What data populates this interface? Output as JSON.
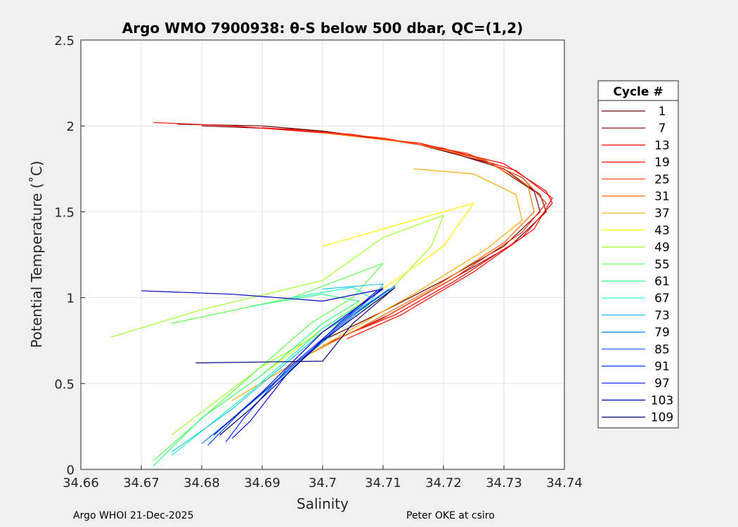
{
  "chart_data": {
    "type": "line",
    "title": "Argo WMO 7900938: θ-S below 500 dbar,  QC=(1,2)",
    "xlabel": "Salinity",
    "ylabel": "Potential Temperature (˚C)",
    "xlim": [
      34.66,
      34.74
    ],
    "ylim": [
      0,
      2.5
    ],
    "xticks": [
      "34.66",
      "34.67",
      "34.68",
      "34.69",
      "34.7",
      "34.71",
      "34.72",
      "34.73",
      "34.74"
    ],
    "xtick_values": [
      34.66,
      34.67,
      34.68,
      34.69,
      34.7,
      34.71,
      34.72,
      34.73,
      34.74
    ],
    "yticks": [
      "0",
      "0.5",
      "1",
      "1.5",
      "2",
      "2.5"
    ],
    "ytick_values": [
      0,
      0.5,
      1,
      1.5,
      2,
      2.5
    ],
    "grid": true,
    "legend": {
      "title": "Cycle #",
      "placement": "right-outside"
    },
    "series": [
      {
        "name": "1",
        "color": "#6b0000",
        "points": [
          [
            34.676,
            2.01
          ],
          [
            34.69,
            2.0
          ],
          [
            34.7,
            1.97
          ],
          [
            34.715,
            1.9
          ],
          [
            34.728,
            1.78
          ],
          [
            34.735,
            1.62
          ],
          [
            34.736,
            1.5
          ],
          [
            34.73,
            1.3
          ],
          [
            34.72,
            1.1
          ],
          [
            34.71,
            0.92
          ],
          [
            34.7,
            0.75
          ]
        ]
      },
      {
        "name": "7",
        "color": "#7a0000",
        "points": [
          [
            34.68,
            2.0
          ],
          [
            34.695,
            1.98
          ],
          [
            34.705,
            1.95
          ],
          [
            34.718,
            1.88
          ],
          [
            34.73,
            1.75
          ],
          [
            34.736,
            1.6
          ],
          [
            34.737,
            1.5
          ],
          [
            34.731,
            1.3
          ],
          [
            34.721,
            1.1
          ],
          [
            34.711,
            0.9
          ],
          [
            34.7,
            0.72
          ]
        ]
      },
      {
        "name": "13",
        "color": "#ff0000",
        "points": [
          [
            34.672,
            2.02
          ],
          [
            34.685,
            2.0
          ],
          [
            34.7,
            1.96
          ],
          [
            34.716,
            1.9
          ],
          [
            34.73,
            1.78
          ],
          [
            34.737,
            1.62
          ],
          [
            34.738,
            1.55
          ],
          [
            34.733,
            1.35
          ],
          [
            34.722,
            1.1
          ],
          [
            34.712,
            0.9
          ],
          [
            34.705,
            0.8
          ]
        ]
      },
      {
        "name": "19",
        "color": "#ff1000",
        "points": [
          [
            34.69,
            1.99
          ],
          [
            34.705,
            1.95
          ],
          [
            34.72,
            1.87
          ],
          [
            34.732,
            1.74
          ],
          [
            34.738,
            1.58
          ],
          [
            34.735,
            1.4
          ],
          [
            34.725,
            1.15
          ],
          [
            34.713,
            0.9
          ],
          [
            34.704,
            0.76
          ]
        ]
      },
      {
        "name": "25",
        "color": "#ff3000",
        "points": [
          [
            34.695,
            1.98
          ],
          [
            34.71,
            1.93
          ],
          [
            34.724,
            1.84
          ],
          [
            34.733,
            1.7
          ],
          [
            34.737,
            1.55
          ],
          [
            34.733,
            1.38
          ],
          [
            34.722,
            1.12
          ],
          [
            34.71,
            0.88
          ],
          [
            34.7,
            0.72
          ]
        ]
      },
      {
        "name": "31",
        "color": "#ff6a00",
        "points": [
          [
            34.7,
            1.96
          ],
          [
            34.715,
            1.9
          ],
          [
            34.727,
            1.8
          ],
          [
            34.734,
            1.65
          ],
          [
            34.735,
            1.5
          ],
          [
            34.73,
            1.32
          ],
          [
            34.718,
            1.05
          ],
          [
            34.706,
            0.82
          ],
          [
            34.695,
            0.62
          ]
        ]
      },
      {
        "name": "37",
        "color": "#ffaa00",
        "points": [
          [
            34.715,
            1.75
          ],
          [
            34.725,
            1.72
          ],
          [
            34.732,
            1.6
          ],
          [
            34.733,
            1.45
          ],
          [
            34.727,
            1.28
          ],
          [
            34.715,
            1.02
          ],
          [
            34.703,
            0.78
          ],
          [
            34.692,
            0.55
          ],
          [
            34.685,
            0.4
          ]
        ]
      },
      {
        "name": "43",
        "color": "#ffff00",
        "points": [
          [
            34.7,
            1.3
          ],
          [
            34.715,
            1.45
          ],
          [
            34.725,
            1.55
          ],
          [
            34.72,
            1.3
          ],
          [
            34.712,
            1.1
          ],
          [
            34.7,
            0.82
          ],
          [
            34.69,
            0.55
          ],
          [
            34.68,
            0.3
          ]
        ]
      },
      {
        "name": "49",
        "color": "#a0ff30",
        "points": [
          [
            34.665,
            0.77
          ],
          [
            34.68,
            0.93
          ],
          [
            34.7,
            1.1
          ],
          [
            34.71,
            1.35
          ],
          [
            34.72,
            1.48
          ],
          [
            34.718,
            1.3
          ],
          [
            34.71,
            1.0
          ],
          [
            34.69,
            0.6
          ],
          [
            34.675,
            0.2
          ]
        ]
      },
      {
        "name": "55",
        "color": "#60ff50",
        "points": [
          [
            34.675,
            0.85
          ],
          [
            34.695,
            1.0
          ],
          [
            34.71,
            1.2
          ],
          [
            34.705,
            1.0
          ],
          [
            34.698,
            0.85
          ],
          [
            34.685,
            0.45
          ],
          [
            34.672,
            0.05
          ]
        ]
      },
      {
        "name": "61",
        "color": "#30ff80",
        "points": [
          [
            34.688,
            0.95
          ],
          [
            34.7,
            1.02
          ],
          [
            34.706,
            0.98
          ],
          [
            34.7,
            0.85
          ],
          [
            34.69,
            0.55
          ],
          [
            34.68,
            0.3
          ],
          [
            34.672,
            0.02
          ]
        ]
      },
      {
        "name": "67",
        "color": "#20ffc0",
        "points": [
          [
            34.695,
            1.0
          ],
          [
            34.705,
            1.06
          ],
          [
            34.708,
            1.0
          ],
          [
            34.7,
            0.82
          ],
          [
            34.688,
            0.45
          ],
          [
            34.675,
            0.08
          ]
        ]
      },
      {
        "name": "73",
        "color": "#20c0f0",
        "points": [
          [
            34.7,
            1.05
          ],
          [
            34.71,
            1.08
          ],
          [
            34.708,
            0.98
          ],
          [
            34.7,
            0.8
          ],
          [
            34.685,
            0.35
          ],
          [
            34.675,
            0.1
          ]
        ]
      },
      {
        "name": "79",
        "color": "#0080ff",
        "points": [
          [
            34.712,
            1.07
          ],
          [
            34.706,
            0.92
          ],
          [
            34.697,
            0.65
          ],
          [
            34.688,
            0.38
          ],
          [
            34.68,
            0.15
          ]
        ]
      },
      {
        "name": "85",
        "color": "#0050ff",
        "points": [
          [
            34.711,
            1.05
          ],
          [
            34.705,
            0.9
          ],
          [
            34.695,
            0.6
          ],
          [
            34.686,
            0.32
          ],
          [
            34.681,
            0.14
          ]
        ]
      },
      {
        "name": "91",
        "color": "#0030ff",
        "points": [
          [
            34.71,
            1.06
          ],
          [
            34.704,
            0.88
          ],
          [
            34.694,
            0.58
          ],
          [
            34.687,
            0.3
          ],
          [
            34.684,
            0.16
          ]
        ]
      },
      {
        "name": "97",
        "color": "#0010ff",
        "points": [
          [
            34.709,
            1.04
          ],
          [
            34.703,
            0.86
          ],
          [
            34.694,
            0.55
          ],
          [
            34.688,
            0.28
          ],
          [
            34.685,
            0.18
          ]
        ]
      },
      {
        "name": "103",
        "color": "#0000c0",
        "points": [
          [
            34.67,
            1.04
          ],
          [
            34.685,
            1.02
          ],
          [
            34.7,
            0.98
          ],
          [
            34.71,
            1.05
          ],
          [
            34.7,
            0.8
          ],
          [
            34.69,
            0.45
          ],
          [
            34.682,
            0.2
          ]
        ]
      },
      {
        "name": "109",
        "color": "#00007a",
        "points": [
          [
            34.679,
            0.62
          ],
          [
            34.7,
            0.63
          ],
          [
            34.705,
            0.85
          ],
          [
            34.712,
            1.06
          ],
          [
            34.7,
            0.75
          ],
          [
            34.688,
            0.35
          ],
          [
            34.683,
            0.2
          ]
        ]
      }
    ]
  },
  "footer": {
    "left": "Argo WHOI 21-Dec-2025",
    "right": "Peter OKE at csiro"
  }
}
